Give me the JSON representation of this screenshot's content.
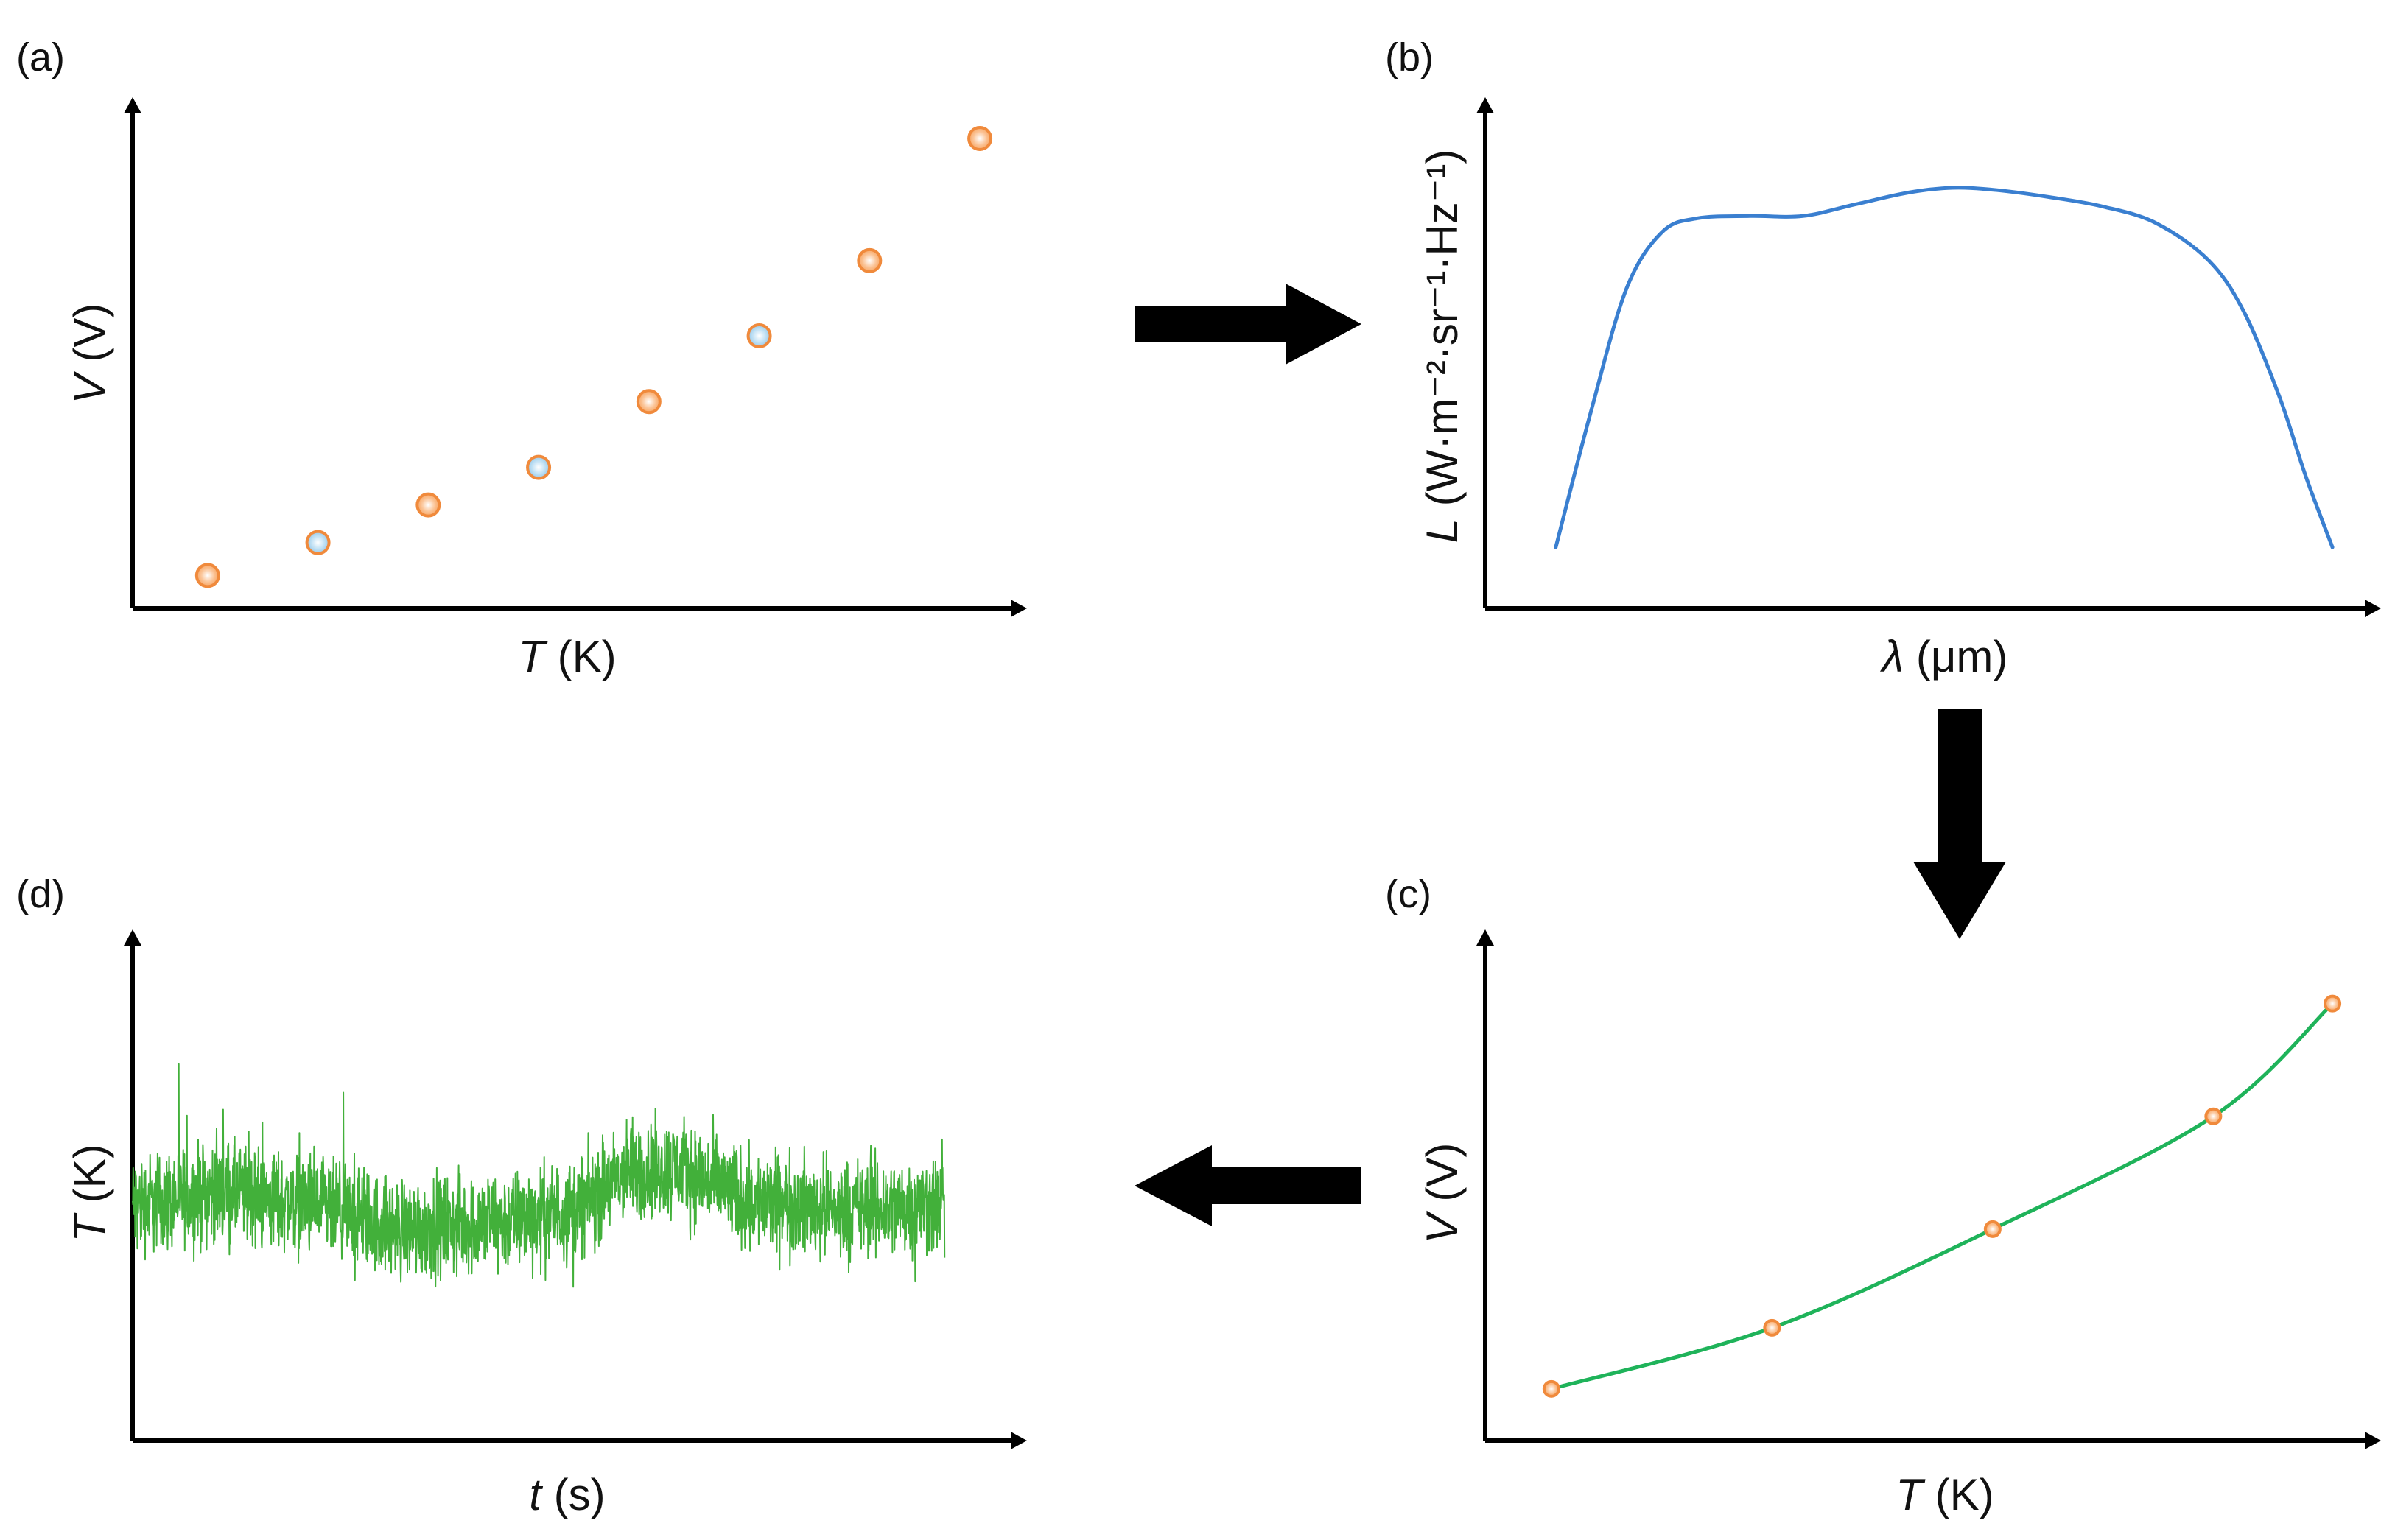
{
  "panels": {
    "a": {
      "label": "(a)",
      "xlabel_var": "T",
      "xlabel_unit": " (K)",
      "ylabel_var": "V",
      "ylabel_unit": " (V)"
    },
    "b": {
      "label": "(b)",
      "xlabel_var": "λ",
      "xlabel_unit": " (μm)",
      "ylabel_var": "L",
      "ylabel_unit": " (W·m⁻²·sr⁻¹·Hz⁻¹)"
    },
    "c": {
      "label": "(c)",
      "xlabel_var": "T",
      "xlabel_unit": " (K)",
      "ylabel_var": "V",
      "ylabel_unit": " (V)"
    },
    "d": {
      "label": "(d)",
      "xlabel_var": "t",
      "xlabel_unit": " (s)",
      "ylabel_var": "T",
      "ylabel_unit": " (K)"
    }
  },
  "colors": {
    "orange_marker": "#f08a3c",
    "orange_fill": "#fbb27a",
    "blue_fill": "#a9d2ec",
    "spectrum_line": "#3a7fd0",
    "fit_line": "#1fb35a",
    "noise_line": "#42b03a",
    "arrow": "#000000"
  },
  "chart_data": [
    {
      "type": "scatter",
      "panel": "a",
      "xlabel": "T (K)",
      "ylabel": "V (V)",
      "xlim": [
        0,
        10
      ],
      "ylim": [
        0,
        10
      ],
      "points": [
        {
          "x": 0.85,
          "y": 0.7,
          "kind": "calibration"
        },
        {
          "x": 2.1,
          "y": 1.4,
          "kind": "measurement"
        },
        {
          "x": 3.35,
          "y": 2.2,
          "kind": "calibration"
        },
        {
          "x": 4.6,
          "y": 3.0,
          "kind": "measurement"
        },
        {
          "x": 5.85,
          "y": 4.4,
          "kind": "calibration"
        },
        {
          "x": 7.1,
          "y": 5.8,
          "kind": "measurement"
        },
        {
          "x": 8.35,
          "y": 7.4,
          "kind": "calibration"
        },
        {
          "x": 9.6,
          "y": 10.0,
          "kind": "calibration"
        }
      ]
    },
    {
      "type": "line",
      "panel": "b",
      "xlabel": "λ (μm)",
      "ylabel": "L (W·m⁻²·sr⁻¹·Hz⁻¹)",
      "xlim": [
        0,
        10
      ],
      "ylim": [
        0,
        10
      ],
      "x": [
        0.8,
        1.2,
        1.6,
        2.0,
        2.4,
        3.0,
        3.6,
        4.2,
        4.8,
        5.3,
        5.8,
        6.4,
        7.0,
        7.6,
        8.2,
        8.6,
        9.0,
        9.3,
        9.6
      ],
      "y": [
        1.3,
        4.2,
        6.8,
        8.0,
        8.3,
        8.35,
        8.35,
        8.6,
        8.85,
        8.95,
        8.9,
        8.75,
        8.55,
        8.2,
        7.4,
        6.3,
        4.5,
        2.8,
        1.3
      ]
    },
    {
      "type": "line",
      "panel": "c",
      "xlabel": "T (K)",
      "ylabel": "V (V)",
      "xlim": [
        0,
        10
      ],
      "ylim": [
        0,
        10
      ],
      "x": [
        0.75,
        3.25,
        5.75,
        8.25,
        9.6
      ],
      "y": [
        1.1,
        2.4,
        4.5,
        6.9,
        9.3
      ]
    },
    {
      "type": "line",
      "panel": "d",
      "xlabel": "t (s)",
      "ylabel": "T (K)",
      "xlim": [
        0,
        10
      ],
      "ylim": [
        0,
        10
      ],
      "trend_x": [
        0,
        1.0,
        2.0,
        3.0,
        4.0,
        5.0,
        5.6,
        6.2,
        7.0,
        8.0,
        9.0,
        9.2
      ],
      "trend_y": [
        5.0,
        5.3,
        5.0,
        4.5,
        4.6,
        4.9,
        5.7,
        5.8,
        5.1,
        4.9,
        5.0,
        5.0
      ],
      "noise_amplitude": 0.9
    }
  ],
  "flow_arrows": [
    {
      "from": "a",
      "to": "b",
      "direction": "right"
    },
    {
      "from": "b",
      "to": "c",
      "direction": "down"
    },
    {
      "from": "c",
      "to": "d",
      "direction": "left"
    }
  ]
}
